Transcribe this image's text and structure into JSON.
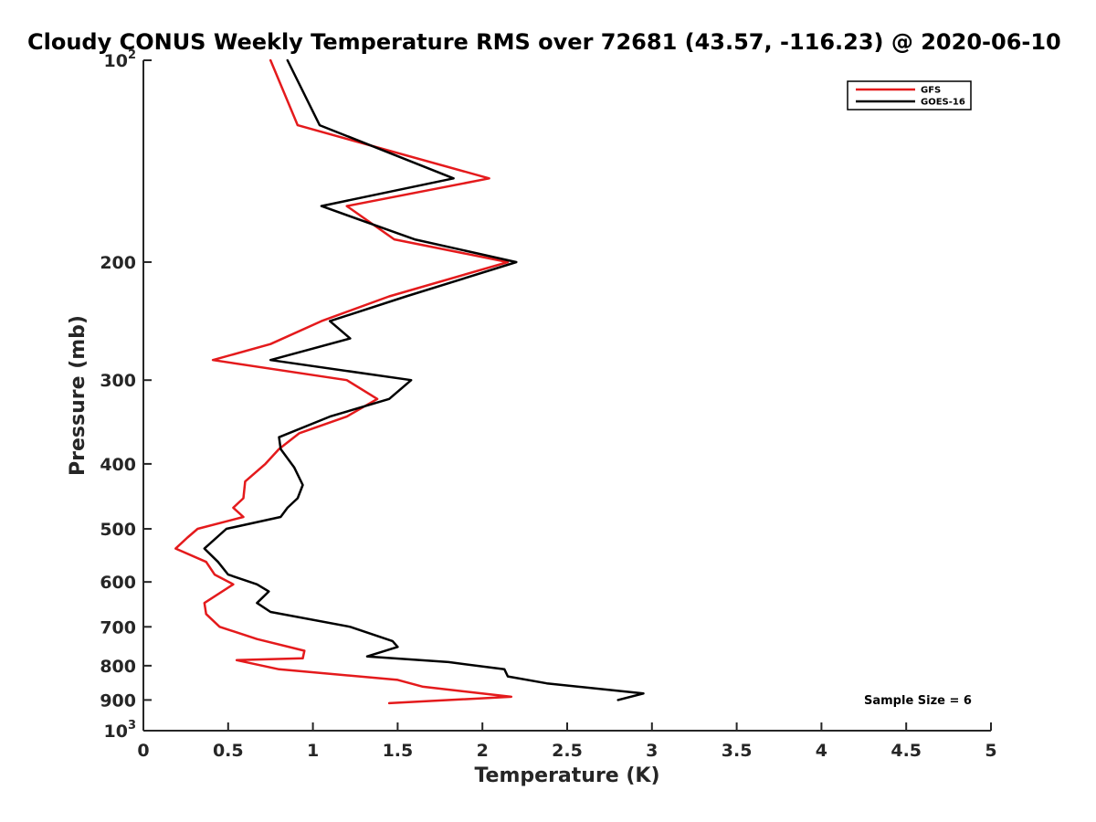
{
  "chart_data": {
    "type": "line",
    "title": "Cloudy CONUS Weekly Temperature RMS over 72681 (43.57, -116.23) @ 2020-06-10",
    "xlabel": "Temperature (K)",
    "ylabel": "Pressure (mb)",
    "xlim": [
      0,
      5
    ],
    "ylim": [
      100,
      1000
    ],
    "yscale": "log",
    "y_reversed": true,
    "x_ticks": [
      "0",
      "0.5",
      "1",
      "1.5",
      "2",
      "2.5",
      "3",
      "3.5",
      "4",
      "4.5",
      "5"
    ],
    "x_tick_values": [
      0,
      0.5,
      1,
      1.5,
      2,
      2.5,
      3,
      3.5,
      4,
      4.5,
      5
    ],
    "y_ticks": [
      "200",
      "300",
      "400",
      "500",
      "600",
      "700",
      "800",
      "900"
    ],
    "y_tick_values": [
      200,
      300,
      400,
      500,
      600,
      700,
      800,
      900
    ],
    "y_end_ticks": {
      "top": {
        "base": "10",
        "exp": "2",
        "value": 100
      },
      "bottom": {
        "base": "10",
        "exp": "3",
        "value": 1000
      }
    },
    "grid": false,
    "legend_position": "top-right",
    "annotation": "Sample Size = 6",
    "series": [
      {
        "name": "GFS",
        "color": "#e41a1c",
        "points": [
          [
            0.75,
            100
          ],
          [
            0.91,
            125
          ],
          [
            2.04,
            150
          ],
          [
            1.2,
            165
          ],
          [
            1.48,
            185
          ],
          [
            2.15,
            200
          ],
          [
            1.45,
            225
          ],
          [
            1.05,
            245
          ],
          [
            0.75,
            265
          ],
          [
            0.41,
            280
          ],
          [
            1.2,
            300
          ],
          [
            1.38,
            320
          ],
          [
            1.2,
            340
          ],
          [
            0.92,
            360
          ],
          [
            0.8,
            380
          ],
          [
            0.72,
            400
          ],
          [
            0.6,
            425
          ],
          [
            0.59,
            450
          ],
          [
            0.53,
            465
          ],
          [
            0.59,
            480
          ],
          [
            0.32,
            500
          ],
          [
            0.26,
            515
          ],
          [
            0.19,
            535
          ],
          [
            0.37,
            560
          ],
          [
            0.42,
            585
          ],
          [
            0.53,
            605
          ],
          [
            0.36,
            645
          ],
          [
            0.37,
            670
          ],
          [
            0.45,
            700
          ],
          [
            0.67,
            730
          ],
          [
            0.95,
            760
          ],
          [
            0.94,
            780
          ],
          [
            0.55,
            785
          ],
          [
            0.8,
            810
          ],
          [
            1.5,
            840
          ],
          [
            1.65,
            860
          ],
          [
            2.17,
            890
          ],
          [
            1.45,
            910
          ]
        ]
      },
      {
        "name": "GOES-16",
        "color": "#000000",
        "points": [
          [
            0.85,
            100
          ],
          [
            1.04,
            125
          ],
          [
            1.83,
            150
          ],
          [
            1.05,
            165
          ],
          [
            1.6,
            185
          ],
          [
            2.2,
            200
          ],
          [
            1.55,
            225
          ],
          [
            1.1,
            245
          ],
          [
            1.22,
            260
          ],
          [
            0.75,
            280
          ],
          [
            1.58,
            300
          ],
          [
            1.45,
            320
          ],
          [
            1.1,
            340
          ],
          [
            0.8,
            365
          ],
          [
            0.81,
            380
          ],
          [
            0.89,
            405
          ],
          [
            0.94,
            430
          ],
          [
            0.91,
            450
          ],
          [
            0.85,
            465
          ],
          [
            0.81,
            480
          ],
          [
            0.49,
            500
          ],
          [
            0.36,
            535
          ],
          [
            0.44,
            560
          ],
          [
            0.5,
            585
          ],
          [
            0.67,
            605
          ],
          [
            0.74,
            620
          ],
          [
            0.67,
            645
          ],
          [
            0.75,
            665
          ],
          [
            1.22,
            700
          ],
          [
            1.47,
            735
          ],
          [
            1.5,
            750
          ],
          [
            1.32,
            775
          ],
          [
            1.8,
            790
          ],
          [
            2.13,
            810
          ],
          [
            2.15,
            830
          ],
          [
            2.38,
            850
          ],
          [
            2.95,
            880
          ],
          [
            2.8,
            900
          ]
        ]
      }
    ]
  }
}
